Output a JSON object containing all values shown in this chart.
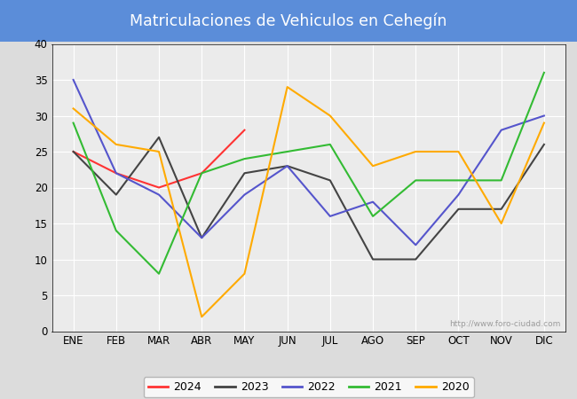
{
  "title": "Matriculaciones de Vehiculos en Cehegín",
  "title_bg_color": "#5b8dd9",
  "title_text_color": "white",
  "months": [
    "ENE",
    "FEB",
    "MAR",
    "ABR",
    "MAY",
    "JUN",
    "JUL",
    "AGO",
    "SEP",
    "OCT",
    "NOV",
    "DIC"
  ],
  "series": {
    "2024": {
      "color": "#ff3333",
      "data": [
        25,
        22,
        20,
        22,
        28,
        null,
        null,
        null,
        null,
        null,
        null,
        null
      ]
    },
    "2023": {
      "color": "#444444",
      "data": [
        25,
        19,
        27,
        13,
        22,
        23,
        21,
        10,
        10,
        17,
        17,
        26
      ]
    },
    "2022": {
      "color": "#5555cc",
      "data": [
        35,
        22,
        19,
        13,
        19,
        23,
        16,
        18,
        12,
        19,
        28,
        30
      ]
    },
    "2021": {
      "color": "#33bb33",
      "data": [
        29,
        14,
        8,
        22,
        24,
        25,
        26,
        16,
        21,
        21,
        21,
        36
      ]
    },
    "2020": {
      "color": "#ffaa00",
      "data": [
        31,
        26,
        25,
        2,
        8,
        34,
        30,
        23,
        25,
        25,
        15,
        29
      ]
    }
  },
  "ylim": [
    0,
    40
  ],
  "yticks": [
    0,
    5,
    10,
    15,
    20,
    25,
    30,
    35,
    40
  ],
  "plot_bg_color": "#ebebeb",
  "outer_bg_color": "#dcdcdc",
  "grid_color": "white",
  "watermark": "http://www.foro-ciudad.com",
  "legend_order": [
    "2024",
    "2023",
    "2022",
    "2021",
    "2020"
  ]
}
